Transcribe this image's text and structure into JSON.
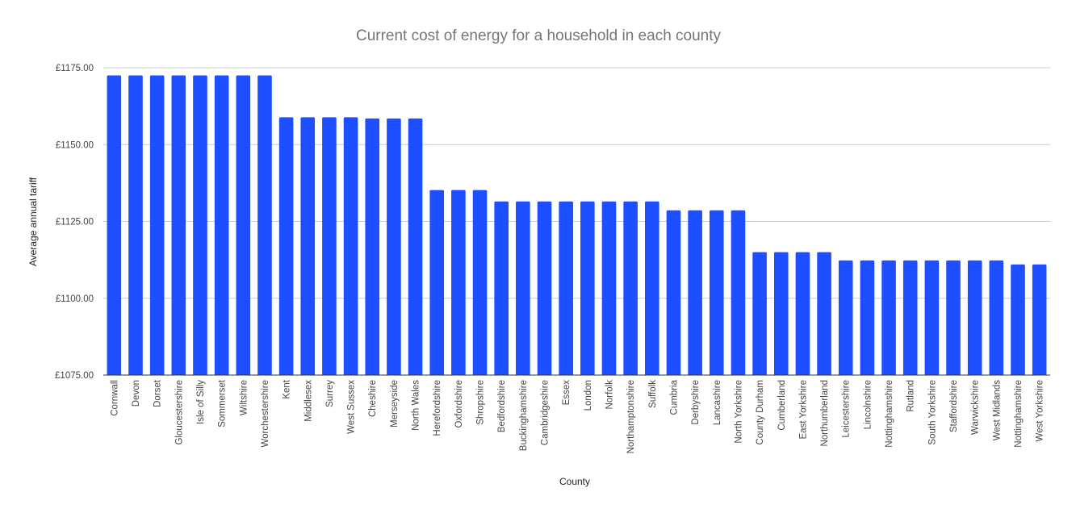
{
  "chart_data": {
    "type": "bar",
    "title": "Current cost of energy for a household in each county",
    "xlabel": "County",
    "ylabel": "Average annual tariff",
    "ylim": [
      1075,
      1175
    ],
    "yticks": [
      1075,
      1100,
      1125,
      1150,
      1175
    ],
    "ytick_labels": [
      "£1075.00",
      "£1100.00",
      "£1125.00",
      "£1150.00",
      "£1175.00"
    ],
    "grid": true,
    "bar_color": "#1d4eff",
    "categories": [
      "Cornwall",
      "Devon",
      "Dorset",
      "Gloucestershire",
      "Isle of Silly",
      "Sommerset",
      "Wiltshire",
      "Worchestershire",
      "Kent",
      "Middlesex",
      "Surrey",
      "West Sussex",
      "Cheshire",
      "Merseyside",
      "North Wales",
      "Herefordshire",
      "Oxfordshire",
      "Shropshire",
      "Bedfordshire",
      "Buckinghamshire",
      "Cambridgeshire",
      "Essex",
      "London",
      "Norfolk",
      "Northamptonshire",
      "Suffolk",
      "Cumbria",
      "Derbyshire",
      "Lancashire",
      "North Yorkshire",
      "County Durham",
      "Cumberland",
      "East Yorkshire",
      "Northumberland",
      "Leicestershire",
      "Lincolnshire",
      "Nottinghamshire",
      "Rutland",
      "South Yorkshire",
      "Staffordshire",
      "Warwickshire",
      "West Midlands",
      "Nottinghamshire",
      "West Yorkshire"
    ],
    "values": [
      1172.5,
      1172.5,
      1172.5,
      1172.5,
      1172.5,
      1172.5,
      1172.5,
      1172.5,
      1158.9,
      1158.9,
      1158.9,
      1158.9,
      1158.5,
      1158.5,
      1158.5,
      1135.2,
      1135.2,
      1135.2,
      1131.5,
      1131.5,
      1131.5,
      1131.5,
      1131.5,
      1131.5,
      1131.5,
      1131.5,
      1128.6,
      1128.6,
      1128.6,
      1128.6,
      1115.0,
      1115.0,
      1115.0,
      1115.0,
      1112.3,
      1112.3,
      1112.3,
      1112.3,
      1112.3,
      1112.3,
      1112.3,
      1112.3,
      1111.0,
      1111.0
    ]
  }
}
